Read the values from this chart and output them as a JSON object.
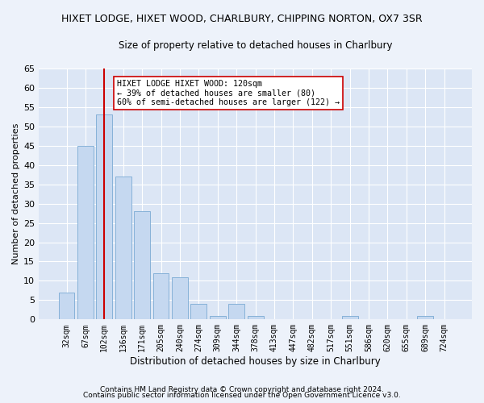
{
  "title": "HIXET LODGE, HIXET WOOD, CHARLBURY, CHIPPING NORTON, OX7 3SR",
  "subtitle": "Size of property relative to detached houses in Charlbury",
  "xlabel": "Distribution of detached houses by size in Charlbury",
  "ylabel": "Number of detached properties",
  "bar_labels": [
    "32sqm",
    "67sqm",
    "102sqm",
    "136sqm",
    "171sqm",
    "205sqm",
    "240sqm",
    "274sqm",
    "309sqm",
    "344sqm",
    "378sqm",
    "413sqm",
    "447sqm",
    "482sqm",
    "517sqm",
    "551sqm",
    "586sqm",
    "620sqm",
    "655sqm",
    "689sqm",
    "724sqm"
  ],
  "bar_values": [
    7,
    45,
    53,
    37,
    28,
    12,
    11,
    4,
    1,
    4,
    1,
    0,
    0,
    0,
    0,
    1,
    0,
    0,
    0,
    1,
    0
  ],
  "bar_color": "#c5d8f0",
  "bar_edgecolor": "#7aaad4",
  "vline_x": 2,
  "vline_color": "#cc0000",
  "annotation_text": "HIXET LODGE HIXET WOOD: 120sqm\n← 39% of detached houses are smaller (80)\n60% of semi-detached houses are larger (122) →",
  "annotation_box_color": "white",
  "annotation_box_edgecolor": "#cc0000",
  "ylim": [
    0,
    65
  ],
  "yticks": [
    0,
    5,
    10,
    15,
    20,
    25,
    30,
    35,
    40,
    45,
    50,
    55,
    60,
    65
  ],
  "footer1": "Contains HM Land Registry data © Crown copyright and database right 2024.",
  "footer2": "Contains public sector information licensed under the Open Government Licence v3.0.",
  "bg_color": "#edf2fa",
  "plot_bg_color": "#dce6f5"
}
